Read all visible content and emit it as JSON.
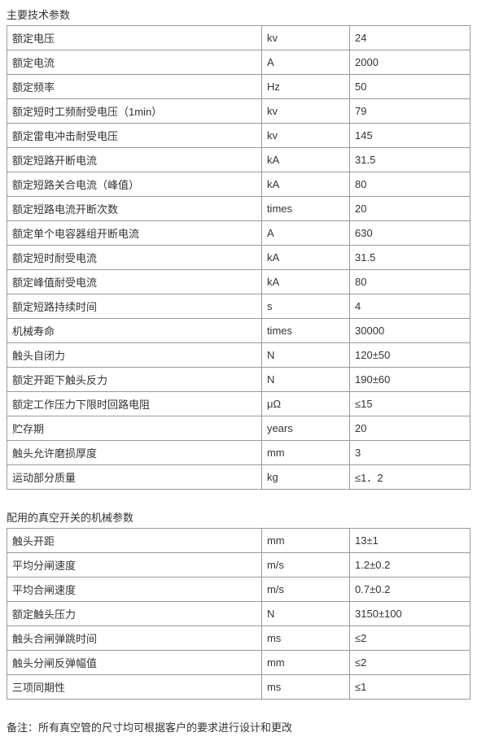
{
  "table1": {
    "title": "主要技术参数",
    "rows": [
      {
        "param": "额定电压",
        "unit": "kv",
        "value": "24"
      },
      {
        "param": "额定电流",
        "unit": "A",
        "value": "2000"
      },
      {
        "param": "额定频率",
        "unit": "Hz",
        "value": "50"
      },
      {
        "param": "额定短时工频耐受电压（1min）",
        "unit": "kv",
        "value": "79"
      },
      {
        "param": "额定雷电冲击耐受电压",
        "unit": "kv",
        "value": "145"
      },
      {
        "param": "额定短路开断电流",
        "unit": "kA",
        "value": "31.5"
      },
      {
        "param": "额定短路关合电流（峰值）",
        "unit": "kA",
        "value": "80"
      },
      {
        "param": "额定短路电流开断次数",
        "unit": "times",
        "value": "20"
      },
      {
        "param": "额定单个电容器组开断电流",
        "unit": "A",
        "value": "630"
      },
      {
        "param": "额定短时耐受电流",
        "unit": "kA",
        "value": "31.5"
      },
      {
        "param": "额定峰值耐受电流",
        "unit": "kA",
        "value": "80"
      },
      {
        "param": "额定短路持续时间",
        "unit": "s",
        "value": "4"
      },
      {
        "param": "机械寿命",
        "unit": "times",
        "value": "30000"
      },
      {
        "param": "触头自闭力",
        "unit": "N",
        "value": "120±50"
      },
      {
        "param": "额定开距下触头反力",
        "unit": "N",
        "value": "190±60"
      },
      {
        "param": "额定工作压力下限时回路电阻",
        "unit": "μΩ",
        "value": "≤15"
      },
      {
        "param": "贮存期",
        "unit": "years",
        "value": "20"
      },
      {
        "param": "触头允许磨损厚度",
        "unit": "mm",
        "value": "3"
      },
      {
        "param": "运动部分质量",
        "unit": "kg",
        "value": "≤1．2"
      }
    ]
  },
  "table2": {
    "title": "配用的真空开关的机械参数",
    "rows": [
      {
        "param": "触头开距",
        "unit": "mm",
        "value": "13±1"
      },
      {
        "param": "平均分闸速度",
        "unit": "m/s",
        "value": "1.2±0.2"
      },
      {
        "param": "平均合闸速度",
        "unit": "m/s",
        "value": "0.7±0.2"
      },
      {
        "param": "额定触头压力",
        "unit": "N",
        "value": "3150±100"
      },
      {
        "param": "触头合闸弹跳时间",
        "unit": "ms",
        "value": "≤2"
      },
      {
        "param": "触头分闸反弹幅值",
        "unit": "mm",
        "value": "≤2"
      },
      {
        "param": "三项同期性",
        "unit": "ms",
        "value": "≤1"
      }
    ]
  },
  "footnote": "备注：所有真空管的尺寸均可根据客户的要求进行设计和更改"
}
